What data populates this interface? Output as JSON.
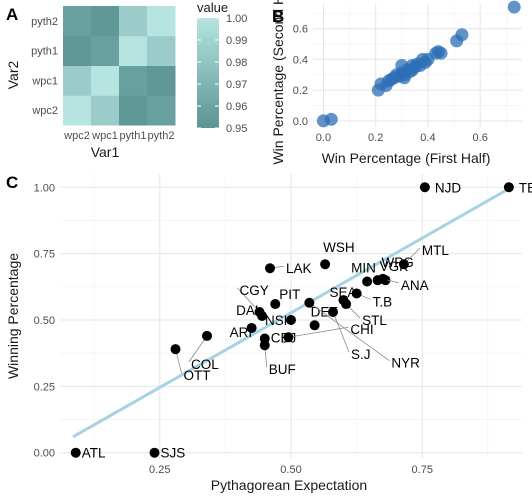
{
  "panel_labels": [
    "A",
    "B",
    "C"
  ],
  "chart_data": [
    {
      "panel": "A",
      "type": "heatmap",
      "xlabel": "Var1",
      "ylabel": "Var2",
      "x_categories": [
        "wpc2",
        "wpc1",
        "pyth1",
        "pyth2"
      ],
      "y_categories": [
        "wpc2",
        "wpc1",
        "pyth1",
        "pyth2"
      ],
      "values": [
        [
          1.0,
          0.985,
          0.952,
          0.957
        ],
        [
          0.985,
          1.0,
          0.957,
          0.952
        ],
        [
          0.952,
          0.957,
          1.0,
          0.985
        ],
        [
          0.957,
          0.952,
          0.985,
          1.0
        ]
      ],
      "legend": {
        "title": "value",
        "breaks": [
          1.0,
          0.99,
          0.98,
          0.97,
          0.96,
          0.95
        ],
        "break_labels": [
          "1.00",
          "0.99",
          "0.98",
          "0.97",
          "0.96",
          "0.95"
        ],
        "color_low": "#5b9594",
        "color_high": "#b6e4e1"
      }
    },
    {
      "panel": "B",
      "type": "scatter",
      "xlabel": "Win Percentage (First Half)",
      "ylabel": "Win Percentage (Second Half)",
      "xlim": [
        -0.04,
        0.76
      ],
      "ylim": [
        -0.04,
        0.76
      ],
      "x_ticks": [
        0.0,
        0.2,
        0.4,
        0.6
      ],
      "x_tick_labels": [
        "0.0",
        "0.2",
        "0.4",
        "0.6"
      ],
      "y_ticks": [
        0.0,
        0.2,
        0.4,
        0.6
      ],
      "y_tick_labels": [
        "0.0",
        "0.2",
        "0.4",
        "0.6"
      ],
      "point_color": "#2e6fb5",
      "points": [
        [
          0.0,
          0.0
        ],
        [
          0.03,
          0.01
        ],
        [
          0.73,
          0.74
        ],
        [
          0.53,
          0.56
        ],
        [
          0.51,
          0.52
        ],
        [
          0.45,
          0.44
        ],
        [
          0.43,
          0.44
        ],
        [
          0.44,
          0.45
        ],
        [
          0.4,
          0.4
        ],
        [
          0.39,
          0.38
        ],
        [
          0.38,
          0.4
        ],
        [
          0.37,
          0.36
        ],
        [
          0.36,
          0.37
        ],
        [
          0.35,
          0.35
        ],
        [
          0.34,
          0.36
        ],
        [
          0.33,
          0.32
        ],
        [
          0.32,
          0.33
        ],
        [
          0.31,
          0.3
        ],
        [
          0.3,
          0.31
        ],
        [
          0.29,
          0.29
        ],
        [
          0.28,
          0.3
        ],
        [
          0.27,
          0.28
        ],
        [
          0.26,
          0.27
        ],
        [
          0.3,
          0.36
        ],
        [
          0.25,
          0.26
        ],
        [
          0.24,
          0.23
        ],
        [
          0.22,
          0.24
        ],
        [
          0.21,
          0.2
        ],
        [
          0.31,
          0.28
        ],
        [
          0.34,
          0.33
        ]
      ]
    },
    {
      "panel": "C",
      "type": "scatter",
      "xlabel": "Pythagorean Expectation",
      "ylabel": "Winning Percentage",
      "xlim": [
        0.06,
        0.94
      ],
      "ylim": [
        -0.02,
        1.05
      ],
      "x_ticks": [
        0.25,
        0.5,
        0.75
      ],
      "x_tick_labels": [
        "0.25",
        "0.50",
        "0.75"
      ],
      "y_ticks": [
        0.0,
        0.25,
        0.5,
        0.75,
        1.0
      ],
      "y_tick_labels": [
        "0.00",
        "0.25",
        "0.50",
        "0.75",
        "1.00"
      ],
      "fit_line": {
        "x": [
          0.085,
          0.92
        ],
        "y": [
          0.06,
          1.0
        ],
        "color": "#a6d3e0"
      },
      "points": [
        {
          "team": "ATL",
          "x": 0.09,
          "y": 0.0
        },
        {
          "team": "SJS",
          "x": 0.24,
          "y": 0.0
        },
        {
          "team": "NJD",
          "x": 0.755,
          "y": 1.0
        },
        {
          "team": "TBL",
          "x": 0.915,
          "y": 1.0
        },
        {
          "team": "WSH",
          "x": 0.565,
          "y": 0.71
        },
        {
          "team": "WPG",
          "x": 0.68,
          "y": 0.65
        },
        {
          "team": "MTL",
          "x": 0.715,
          "y": 0.71
        },
        {
          "team": "VGK",
          "x": 0.665,
          "y": 0.65
        },
        {
          "team": "ANA",
          "x": 0.675,
          "y": 0.655
        },
        {
          "team": "MIN",
          "x": 0.645,
          "y": 0.645
        },
        {
          "team": "T.B",
          "x": 0.625,
          "y": 0.6
        },
        {
          "team": "LAK",
          "x": 0.46,
          "y": 0.695
        },
        {
          "team": "CGY",
          "x": 0.44,
          "y": 0.53
        },
        {
          "team": "PIT",
          "x": 0.47,
          "y": 0.56
        },
        {
          "team": "DAL",
          "x": 0.445,
          "y": 0.515
        },
        {
          "team": "NSH",
          "x": 0.5,
          "y": 0.5
        },
        {
          "team": "SEA",
          "x": 0.6,
          "y": 0.575
        },
        {
          "team": "STL",
          "x": 0.605,
          "y": 0.56
        },
        {
          "team": "ARI",
          "x": 0.425,
          "y": 0.47
        },
        {
          "team": "CBJ",
          "x": 0.45,
          "y": 0.43
        },
        {
          "team": "DET",
          "x": 0.545,
          "y": 0.48
        },
        {
          "team": "S.J",
          "x": 0.58,
          "y": 0.53
        },
        {
          "team": "OTT",
          "x": 0.28,
          "y": 0.39
        },
        {
          "team": "COL",
          "x": 0.34,
          "y": 0.44
        },
        {
          "team": "BUF",
          "x": 0.45,
          "y": 0.405
        },
        {
          "team": "CHI",
          "x": 0.495,
          "y": 0.435
        },
        {
          "team": "NYR",
          "x": 0.535,
          "y": 0.565
        }
      ]
    }
  ]
}
